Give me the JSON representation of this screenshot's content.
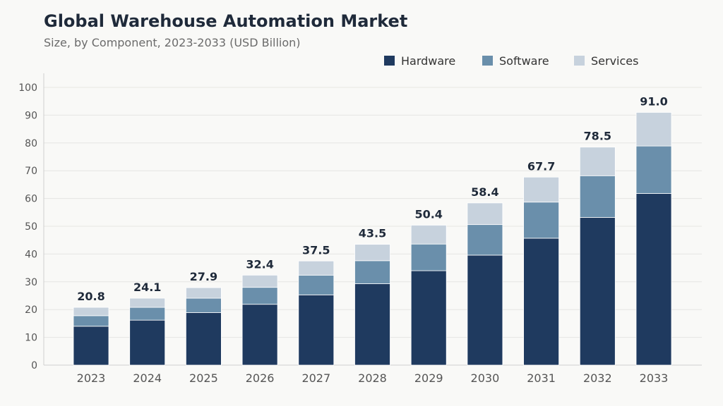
{
  "chart_data": {
    "type": "bar",
    "stacked": true,
    "title": "Global Warehouse Automation Market",
    "subtitle": "Size, by Component, 2023-2033 (USD Billion)",
    "xlabel": "",
    "ylabel": "",
    "ylim": [
      0,
      100
    ],
    "yticks": [
      0,
      10,
      20,
      30,
      40,
      50,
      60,
      70,
      80,
      90,
      100
    ],
    "grid": true,
    "legend_position": "top-right",
    "categories": [
      "2023",
      "2024",
      "2025",
      "2026",
      "2027",
      "2028",
      "2029",
      "2030",
      "2031",
      "2032",
      "2033"
    ],
    "series": [
      {
        "name": "Hardware",
        "color": "#1f3a5f",
        "values": [
          14.0,
          16.2,
          18.9,
          21.9,
          25.3,
          29.3,
          34.0,
          39.6,
          45.7,
          53.2,
          61.8
        ]
      },
      {
        "name": "Software",
        "color": "#6a8fab",
        "values": [
          3.8,
          4.6,
          5.2,
          6.1,
          7.1,
          8.3,
          9.6,
          11.0,
          13.0,
          15.0,
          17.1
        ]
      },
      {
        "name": "Services",
        "color": "#c7d2dd",
        "values": [
          3.0,
          3.3,
          3.8,
          4.4,
          5.1,
          5.9,
          6.8,
          7.8,
          9.0,
          10.3,
          12.1
        ]
      }
    ],
    "totals": [
      "20.8",
      "24.1",
      "27.9",
      "32.4",
      "37.5",
      "43.5",
      "50.4",
      "58.4",
      "67.7",
      "78.5",
      "91.0"
    ]
  }
}
